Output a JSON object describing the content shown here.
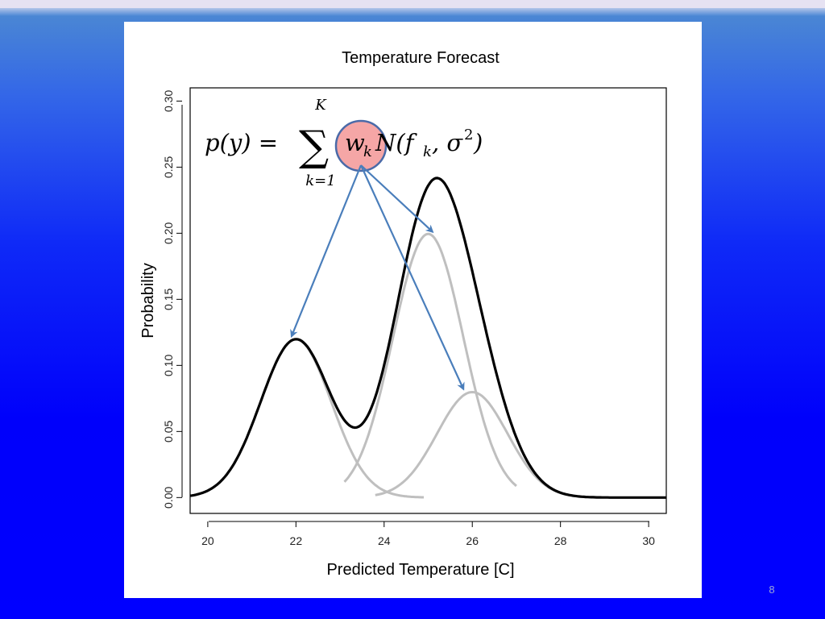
{
  "slide": {
    "page_number": "8",
    "background_colors": [
      "#e6e2f2",
      "#4a86d4",
      "#0000ff"
    ]
  },
  "formula": {
    "lhs": "p(y) =",
    "sum_symbol": "∑",
    "upper_limit": "K",
    "lower_limit": "k=1",
    "weight": "w",
    "weight_sub": "k",
    "normal": "N(f",
    "normal_sub": "k",
    "normal_rest": ", σ",
    "normal_sup": "2",
    "normal_close": ")",
    "highlight_color": "#f5a6a6",
    "arrow_color": "#4a7ebb"
  },
  "chart_data": {
    "type": "line",
    "title": "Temperature Forecast",
    "xlabel": "Predicted Temperature [C]",
    "ylabel": "Probability",
    "xlim": [
      19.6,
      30.4
    ],
    "ylim": [
      -0.012,
      0.31
    ],
    "xticks": [
      20,
      22,
      24,
      26,
      28,
      30
    ],
    "yticks": [
      0.0,
      0.05,
      0.1,
      0.15,
      0.2,
      0.25,
      0.3
    ],
    "ytick_labels": [
      "0.00",
      "0.05",
      "0.10",
      "0.15",
      "0.20",
      "0.25",
      "0.30"
    ],
    "grid": false,
    "legend": "none",
    "mixture": {
      "x_range": [
        19.6,
        30.4
      ],
      "color": "#000000",
      "sd": 0.8,
      "components": [
        {
          "mean": 22,
          "weight": 0.24
        },
        {
          "mean": 25,
          "weight": 0.4
        },
        {
          "mean": 26,
          "weight": 0.16
        }
      ]
    },
    "series": [
      {
        "color": "#bfbfbf",
        "x_range": [
          21.7,
          24.9
        ],
        "mean": 22,
        "weight": 0.24,
        "sd": 0.8
      },
      {
        "color": "#bfbfbf",
        "x_range": [
          23.1,
          27.0
        ],
        "mean": 25,
        "weight": 0.4,
        "sd": 0.8
      },
      {
        "color": "#bfbfbf",
        "x_range": [
          23.8,
          28.2
        ],
        "mean": 26,
        "weight": 0.16,
        "sd": 0.8
      }
    ],
    "arrow_targets": [
      {
        "x": 21.9,
        "y": 0.122
      },
      {
        "x": 25.1,
        "y": 0.201
      },
      {
        "x": 25.8,
        "y": 0.082
      }
    ]
  }
}
